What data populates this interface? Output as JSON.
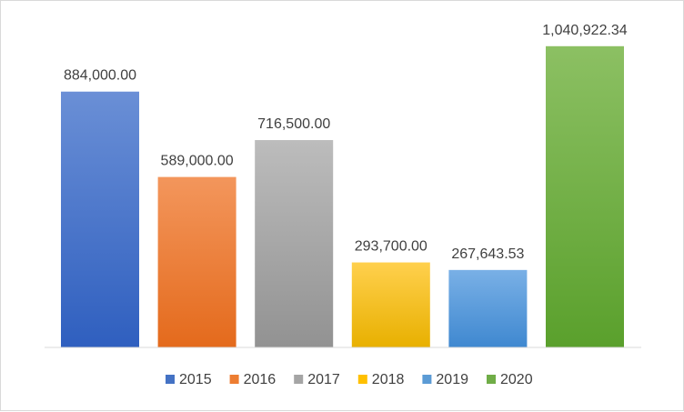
{
  "chart_data": {
    "type": "bar",
    "categories": [
      "2015",
      "2016",
      "2017",
      "2018",
      "2019",
      "2020"
    ],
    "values": [
      884000.0,
      589000.0,
      716500.0,
      293700.0,
      267643.53,
      1040922.34
    ],
    "data_labels": [
      "884,000.00",
      "589,000.00",
      "716,500.00",
      "293,700.00",
      "267,643.53",
      "1,040,922.34"
    ],
    "colors": [
      [
        "#6a8fd6",
        "#2f5fbf"
      ],
      [
        "#f3965c",
        "#e46a1c"
      ],
      [
        "#bcbcbc",
        "#929292"
      ],
      [
        "#ffd04d",
        "#e8b000"
      ],
      [
        "#79b0e6",
        "#3f88d0"
      ],
      [
        "#8cc063",
        "#5aa02c"
      ]
    ],
    "legend_colors": [
      "#4472c4",
      "#ed7d31",
      "#a5a5a5",
      "#ffc000",
      "#5b9bd5",
      "#70ad47"
    ],
    "ylim": [
      0,
      1100000
    ],
    "grid": false,
    "legend_position": "bottom"
  }
}
